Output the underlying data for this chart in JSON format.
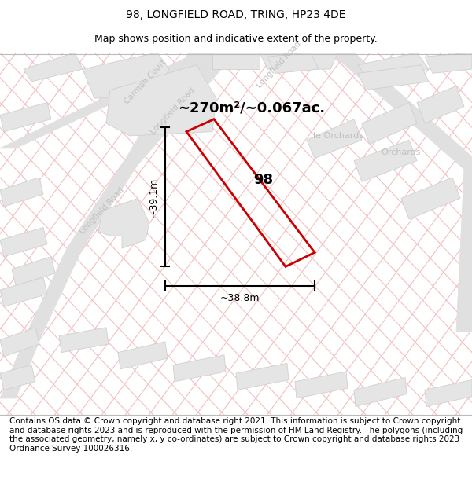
{
  "title": "98, LONGFIELD ROAD, TRING, HP23 4DE",
  "subtitle": "Map shows position and indicative extent of the property.",
  "area_label": "~270m²/~0.067ac.",
  "property_label": "98",
  "dim_vertical": "~39.1m",
  "dim_horizontal": "~38.8m",
  "footer": "Contains OS data © Crown copyright and database right 2021. This information is subject to Crown copyright and database rights 2023 and is reproduced with the permission of HM Land Registry. The polygons (including the associated geometry, namely x, y co-ordinates) are subject to Crown copyright and database rights 2023 Ordnance Survey 100026316.",
  "map_bg": "#f9f9f9",
  "polygon_color": "#cc0000",
  "title_fontsize": 10,
  "subtitle_fontsize": 9,
  "footer_fontsize": 7.5,
  "road_label_color": "#c0c0c0",
  "hatch_color": "#f2c0c0",
  "block_color": "#e5e5e5",
  "block_edge": "#d0d0d0",
  "road_color": "#e0e0e0"
}
